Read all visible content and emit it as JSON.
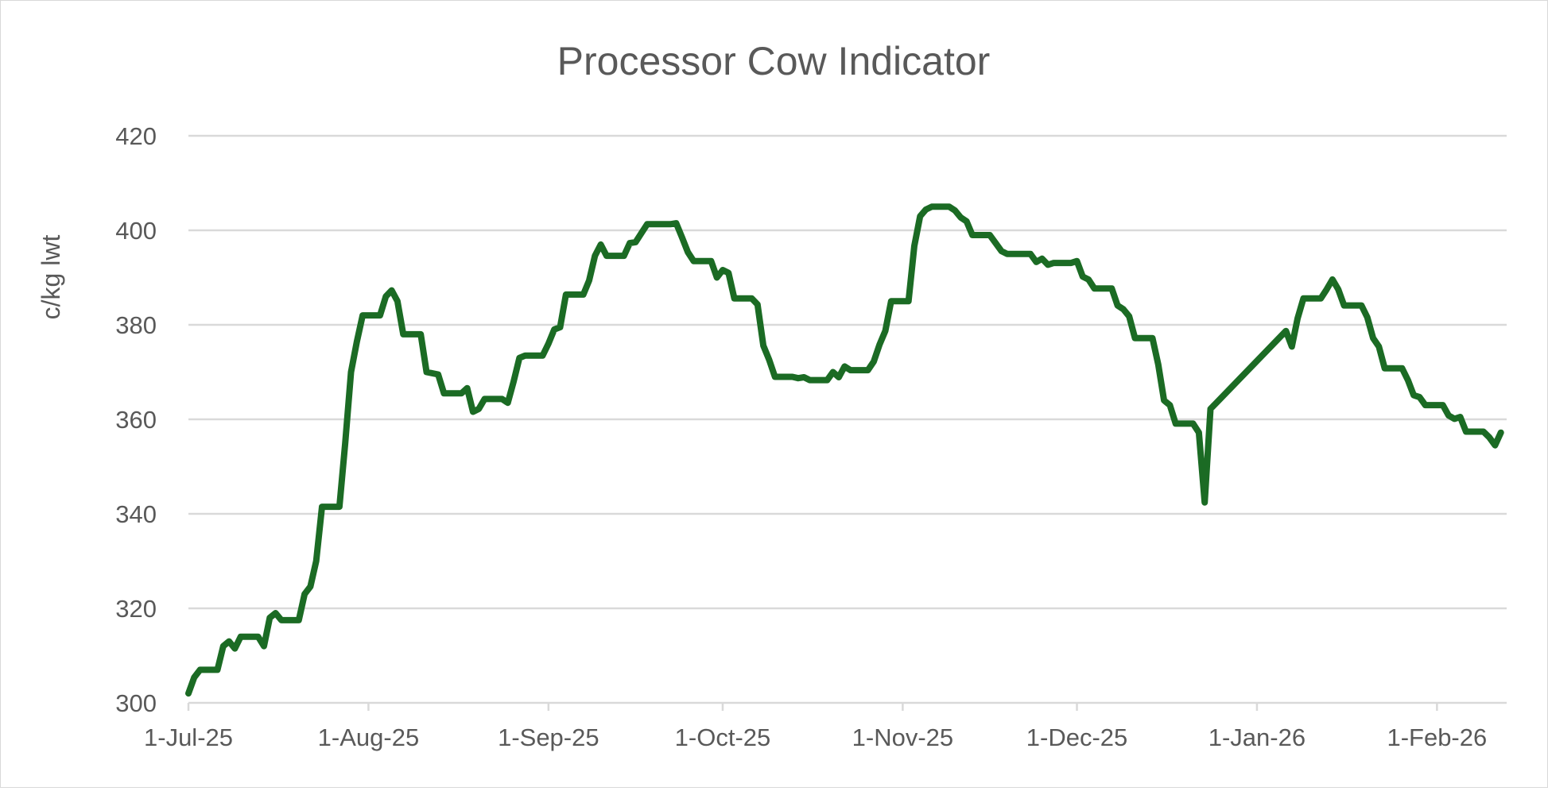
{
  "chart_data": {
    "type": "line",
    "title": "Processor Cow Indicator",
    "xlabel": "",
    "ylabel": "c/kg lwt",
    "xlim": [
      "2025-07-01",
      "2026-02-13"
    ],
    "ylim": [
      300,
      420
    ],
    "y_ticks": [
      300,
      320,
      340,
      360,
      380,
      400,
      420
    ],
    "x_ticks": [
      {
        "date": "2025-07-01",
        "label": "1-Jul-25"
      },
      {
        "date": "2025-08-01",
        "label": "1-Aug-25"
      },
      {
        "date": "2025-09-01",
        "label": "1-Sep-25"
      },
      {
        "date": "2025-10-01",
        "label": "1-Oct-25"
      },
      {
        "date": "2025-11-01",
        "label": "1-Nov-25"
      },
      {
        "date": "2025-12-01",
        "label": "1-Dec-25"
      },
      {
        "date": "2026-01-01",
        "label": "1-Jan-26"
      },
      {
        "date": "2026-02-01",
        "label": "1-Feb-26"
      }
    ],
    "grid": "horizontal",
    "legend": "none",
    "colors": {
      "line": "#1b6b24",
      "grid": "#d9d9d9",
      "text": "#595959"
    },
    "series": [
      {
        "x": [
          "2025-07-01",
          "2025-07-02",
          "2025-07-03",
          "2025-07-06",
          "2025-07-07",
          "2025-07-08",
          "2025-07-09",
          "2025-07-10",
          "2025-07-13",
          "2025-07-14",
          "2025-07-15",
          "2025-07-16",
          "2025-07-17",
          "2025-07-20",
          "2025-07-21",
          "2025-07-22",
          "2025-07-23",
          "2025-07-24",
          "2025-07-27",
          "2025-07-28",
          "2025-07-29",
          "2025-07-30",
          "2025-07-31",
          "2025-08-03",
          "2025-08-04",
          "2025-08-05",
          "2025-08-06",
          "2025-08-07",
          "2025-08-10",
          "2025-08-11",
          "2025-08-13",
          "2025-08-14",
          "2025-08-17",
          "2025-08-18",
          "2025-08-19",
          "2025-08-20",
          "2025-08-21",
          "2025-08-24",
          "2025-08-25",
          "2025-08-26",
          "2025-08-27",
          "2025-08-28",
          "2025-08-31",
          "2025-09-01",
          "2025-09-02",
          "2025-09-03",
          "2025-09-04",
          "2025-09-07",
          "2025-09-08",
          "2025-09-09",
          "2025-09-10",
          "2025-09-11",
          "2025-09-14",
          "2025-09-15",
          "2025-09-16",
          "2025-09-17",
          "2025-09-18",
          "2025-09-22",
          "2025-09-23",
          "2025-09-24",
          "2025-09-25",
          "2025-09-26",
          "2025-09-29",
          "2025-09-30",
          "2025-10-01",
          "2025-10-02",
          "2025-10-03",
          "2025-10-06",
          "2025-10-07",
          "2025-10-08",
          "2025-10-09",
          "2025-10-10",
          "2025-10-13",
          "2025-10-14",
          "2025-10-15",
          "2025-10-16",
          "2025-10-19",
          "2025-10-20",
          "2025-10-21",
          "2025-10-22",
          "2025-10-23",
          "2025-10-26",
          "2025-10-27",
          "2025-10-28",
          "2025-10-29",
          "2025-10-30",
          "2025-11-02",
          "2025-11-03",
          "2025-11-04",
          "2025-11-05",
          "2025-11-06",
          "2025-11-09",
          "2025-11-10",
          "2025-11-11",
          "2025-11-12",
          "2025-11-13",
          "2025-11-16",
          "2025-11-17",
          "2025-11-18",
          "2025-11-19",
          "2025-11-23",
          "2025-11-24",
          "2025-11-25",
          "2025-11-26",
          "2025-11-27",
          "2025-11-30",
          "2025-12-01",
          "2025-12-02",
          "2025-12-03",
          "2025-12-04",
          "2025-12-07",
          "2025-12-08",
          "2025-12-09",
          "2025-12-10",
          "2025-12-11",
          "2025-12-14",
          "2025-12-15",
          "2025-12-16",
          "2025-12-17",
          "2025-12-18",
          "2025-12-21",
          "2025-12-22",
          "2025-12-23",
          "2025-12-24",
          "2026-01-06",
          "2026-01-07",
          "2026-01-08",
          "2026-01-09",
          "2026-01-12",
          "2026-01-13",
          "2026-01-14",
          "2026-01-15",
          "2026-01-16",
          "2026-01-19",
          "2026-01-20",
          "2026-01-21",
          "2026-01-22",
          "2026-01-23",
          "2026-01-26",
          "2026-01-27",
          "2026-01-28",
          "2026-01-29",
          "2026-01-30",
          "2026-02-02",
          "2026-02-03",
          "2026-02-04",
          "2026-02-05",
          "2026-02-06",
          "2026-02-09",
          "2026-02-10",
          "2026-02-11",
          "2026-02-12"
        ],
        "y": [
          302,
          305.4,
          307,
          307,
          312,
          313,
          311.5,
          314,
          314,
          312,
          318,
          319,
          317.5,
          317.5,
          323,
          324.6,
          330,
          341.5,
          341.5,
          355,
          370,
          376.4,
          382,
          382,
          386,
          387.3,
          385,
          378,
          378,
          370,
          369.5,
          365.5,
          365.5,
          366.6,
          361.6,
          362.2,
          364.3,
          364.3,
          363.5,
          368,
          373,
          373.5,
          373.5,
          376,
          379,
          379.5,
          386.4,
          386.4,
          389.4,
          394.6,
          397,
          394.6,
          394.6,
          397.3,
          397.5,
          399.4,
          401.3,
          401.3,
          401.5,
          398.5,
          395.4,
          393.5,
          393.5,
          390,
          391.6,
          391,
          385.6,
          385.6,
          384.3,
          375.6,
          372.6,
          369,
          369,
          368.7,
          368.9,
          368.3,
          368.3,
          370,
          368.9,
          371.2,
          370.4,
          370.4,
          372.2,
          375.8,
          378.7,
          385,
          385,
          396.7,
          403,
          404.4,
          405,
          405,
          404.2,
          402.7,
          401.9,
          399,
          399,
          397.3,
          395.6,
          395,
          395,
          393.3,
          394,
          392.7,
          393.1,
          393.1,
          393.5,
          390.2,
          389.6,
          387.7,
          387.7,
          384.1,
          383.3,
          381.8,
          377.2,
          377.2,
          371.6,
          364,
          363,
          359.1,
          359.1,
          357.2,
          342.4,
          362.2,
          378.7,
          375.4,
          381.4,
          385.6,
          385.6,
          387.5,
          389.6,
          387.5,
          384.1,
          384.1,
          381.6,
          377.2,
          375.4,
          370.8,
          370.8,
          368.3,
          365.1,
          364.7,
          363,
          363,
          360.8,
          360.1,
          360.5,
          357.4,
          357.4,
          356.2,
          354.5,
          357.2
        ]
      }
    ]
  }
}
